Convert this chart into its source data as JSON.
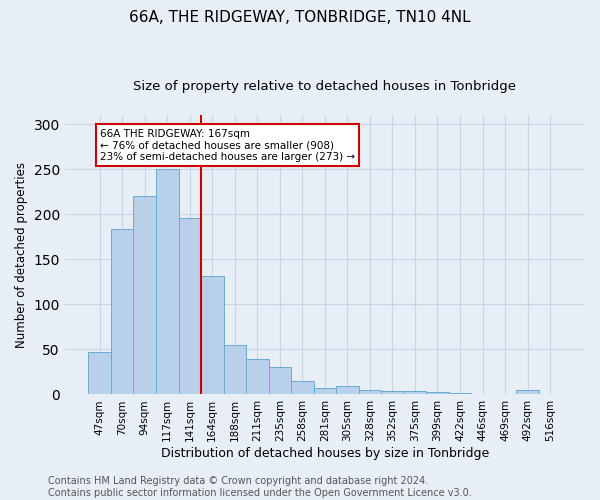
{
  "title1": "66A, THE RIDGEWAY, TONBRIDGE, TN10 4NL",
  "title2": "Size of property relative to detached houses in Tonbridge",
  "xlabel": "Distribution of detached houses by size in Tonbridge",
  "ylabel": "Number of detached properties",
  "categories": [
    "47sqm",
    "70sqm",
    "94sqm",
    "117sqm",
    "141sqm",
    "164sqm",
    "188sqm",
    "211sqm",
    "235sqm",
    "258sqm",
    "281sqm",
    "305sqm",
    "328sqm",
    "352sqm",
    "375sqm",
    "399sqm",
    "422sqm",
    "446sqm",
    "469sqm",
    "492sqm",
    "516sqm"
  ],
  "values": [
    47,
    184,
    220,
    250,
    196,
    131,
    55,
    39,
    30,
    15,
    7,
    9,
    5,
    4,
    4,
    3,
    2,
    1,
    0,
    5,
    1
  ],
  "bar_color": "#b8d0ea",
  "bar_edge_color": "#6aaad4",
  "vline_x": 4.5,
  "vline_color": "#cc0000",
  "annotation_text": "66A THE RIDGEWAY: 167sqm\n← 76% of detached houses are smaller (908)\n23% of semi-detached houses are larger (273) →",
  "annotation_box_color": "#ffffff",
  "annotation_box_edge": "#cc0000",
  "ylim": [
    0,
    310
  ],
  "yticks": [
    0,
    50,
    100,
    150,
    200,
    250,
    300
  ],
  "grid_color": "#c8d4e8",
  "bg_color": "#e8eef6",
  "footer": "Contains HM Land Registry data © Crown copyright and database right 2024.\nContains public sector information licensed under the Open Government Licence v3.0.",
  "title1_fontsize": 11,
  "title2_fontsize": 9.5,
  "xlabel_fontsize": 9,
  "ylabel_fontsize": 8.5,
  "tick_fontsize": 7.5,
  "footer_fontsize": 7,
  "annot_fontsize": 7.5
}
